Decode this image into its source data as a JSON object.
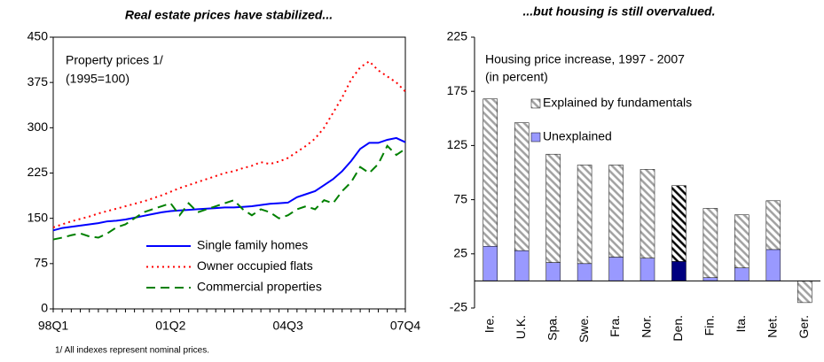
{
  "chart_data": [
    {
      "type": "line",
      "title": "Real estate prices have stabilized...",
      "annotations": [
        "Property prices 1/",
        "(1995=100)"
      ],
      "footnote": "1/ All indexes represent nominal prices.",
      "categories": [
        "98Q1",
        null,
        null,
        null,
        null,
        null,
        null,
        null,
        null,
        null,
        null,
        null,
        null,
        "01Q2",
        null,
        null,
        null,
        null,
        null,
        null,
        null,
        null,
        null,
        null,
        null,
        null,
        "04Q3",
        null,
        null,
        null,
        null,
        null,
        null,
        null,
        null,
        null,
        null,
        null,
        null,
        "07Q4"
      ],
      "ylim": [
        0,
        450
      ],
      "yticks": [
        0,
        75,
        150,
        225,
        300,
        375,
        450
      ],
      "grid": false,
      "legend": "lower right",
      "series": [
        {
          "name": "Single family homes",
          "color": "#0000ff",
          "dash": "solid",
          "values": [
            130,
            134,
            136,
            138,
            140,
            142,
            145,
            146,
            148,
            151,
            154,
            157,
            160,
            162,
            163,
            164,
            165,
            166,
            167,
            168,
            168,
            169,
            170,
            172,
            174,
            175,
            176,
            185,
            190,
            195,
            205,
            215,
            228,
            245,
            265,
            275,
            275,
            280,
            283,
            276
          ]
        },
        {
          "name": "Owner occupied flats",
          "color": "#ff0000",
          "dash": "dotted",
          "values": [
            135,
            140,
            145,
            149,
            153,
            158,
            162,
            166,
            170,
            174,
            178,
            183,
            188,
            194,
            200,
            205,
            210,
            215,
            220,
            225,
            228,
            233,
            237,
            243,
            240,
            244,
            250,
            260,
            270,
            282,
            300,
            325,
            350,
            380,
            400,
            410,
            395,
            385,
            375,
            360
          ]
        },
        {
          "name": "Commercial properties",
          "color": "#008000",
          "dash": "dashed",
          "values": [
            115,
            118,
            122,
            125,
            120,
            118,
            125,
            135,
            140,
            150,
            160,
            165,
            170,
            175,
            155,
            175,
            160,
            165,
            170,
            175,
            180,
            165,
            155,
            165,
            160,
            150,
            155,
            165,
            170,
            165,
            180,
            175,
            195,
            210,
            235,
            225,
            240,
            270,
            255,
            265
          ]
        }
      ]
    },
    {
      "type": "bar",
      "title": "...but housing is still overvalued.",
      "annotations": [
        "Housing price increase, 1997 - 2007",
        "(in percent)"
      ],
      "categories": [
        "Ire.",
        "U.K.",
        "Spa.",
        "Swe.",
        "Fra.",
        "Nor.",
        "Den.",
        "Fin.",
        "Ita.",
        "Net.",
        "Ger."
      ],
      "ylim": [
        -25,
        225
      ],
      "yticks": [
        -25,
        25,
        75,
        125,
        175,
        225
      ],
      "grid": false,
      "legend": "upper right",
      "stacked": true,
      "series": [
        {
          "name": "Unexplained",
          "fill": "solid",
          "colors": [
            "#9999ff",
            "#9999ff",
            "#9999ff",
            "#9999ff",
            "#9999ff",
            "#9999ff",
            "#000080",
            "#9999ff",
            "#9999ff",
            "#9999ff",
            "#9999ff"
          ],
          "values": [
            32,
            28,
            17,
            16,
            22,
            21,
            18,
            3,
            12,
            29,
            0
          ]
        },
        {
          "name": "Explained by fundamentals",
          "fill": "hatch",
          "colors": [
            "#a0a0a0",
            "#a0a0a0",
            "#a0a0a0",
            "#a0a0a0",
            "#a0a0a0",
            "#a0a0a0",
            "#000000",
            "#a0a0a0",
            "#a0a0a0",
            "#a0a0a0",
            "#a0a0a0"
          ],
          "values": [
            136,
            118,
            100,
            91,
            85,
            82,
            70,
            64,
            49,
            45,
            -20
          ]
        }
      ]
    }
  ]
}
